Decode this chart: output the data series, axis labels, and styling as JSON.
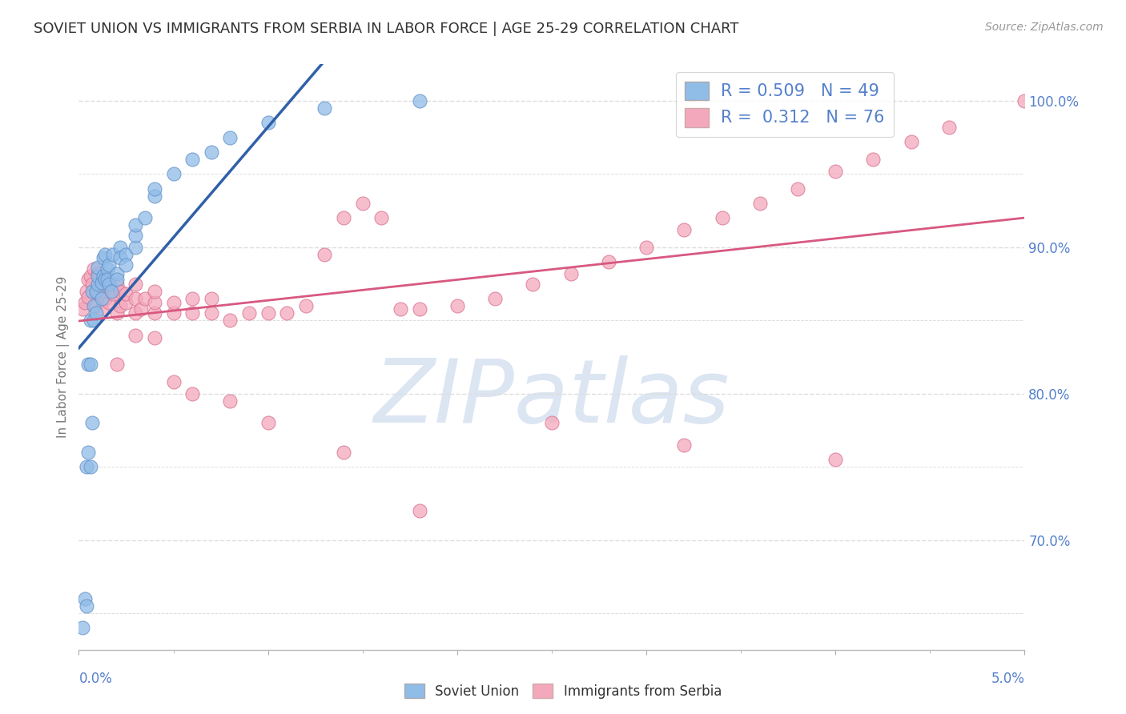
{
  "title": "SOVIET UNION VS IMMIGRANTS FROM SERBIA IN LABOR FORCE | AGE 25-29 CORRELATION CHART",
  "source": "Source: ZipAtlas.com",
  "ylabel": "In Labor Force | Age 25-29",
  "xlim": [
    0.0,
    0.05
  ],
  "ylim": [
    0.625,
    1.025
  ],
  "soviet_color": "#90bce8",
  "serbia_color": "#f4a8bc",
  "soviet_edge_color": "#6090c8",
  "serbia_edge_color": "#d87090",
  "soviet_line_color": "#3060a8",
  "serbia_line_color": "#d85880",
  "background_color": "#ffffff",
  "grid_color": "#dddddd",
  "tick_color": "#5580cc",
  "title_color": "#333333",
  "source_color": "#999999",
  "watermark_color": "#c0d0e8",
  "legend_r1": "R = 0.509   N = 49",
  "legend_r2": "R =  0.312   N = 76",
  "soviet_x": [
    0.0002,
    0.0003,
    0.0004,
    0.0004,
    0.0005,
    0.0005,
    0.0006,
    0.0006,
    0.0006,
    0.0007,
    0.0007,
    0.0008,
    0.0008,
    0.0009,
    0.0009,
    0.001,
    0.001,
    0.001,
    0.0012,
    0.0012,
    0.0013,
    0.0013,
    0.0014,
    0.0014,
    0.0015,
    0.0015,
    0.0016,
    0.0016,
    0.0017,
    0.0018,
    0.002,
    0.002,
    0.0022,
    0.0022,
    0.0025,
    0.0025,
    0.003,
    0.003,
    0.003,
    0.0035,
    0.004,
    0.004,
    0.005,
    0.006,
    0.007,
    0.008,
    0.01,
    0.013,
    0.018
  ],
  "soviet_y": [
    0.64,
    0.66,
    0.655,
    0.75,
    0.82,
    0.76,
    0.85,
    0.82,
    0.75,
    0.78,
    0.87,
    0.85,
    0.86,
    0.87,
    0.855,
    0.875,
    0.88,
    0.886,
    0.876,
    0.865,
    0.88,
    0.893,
    0.878,
    0.895,
    0.885,
    0.878,
    0.875,
    0.888,
    0.87,
    0.895,
    0.882,
    0.878,
    0.9,
    0.893,
    0.895,
    0.888,
    0.9,
    0.908,
    0.915,
    0.92,
    0.935,
    0.94,
    0.95,
    0.96,
    0.965,
    0.975,
    0.985,
    0.995,
    1.0
  ],
  "serbia_x": [
    0.0002,
    0.0003,
    0.0004,
    0.0005,
    0.0005,
    0.0006,
    0.0007,
    0.0008,
    0.0009,
    0.001,
    0.001,
    0.0012,
    0.0013,
    0.0014,
    0.0015,
    0.0016,
    0.0017,
    0.0018,
    0.002,
    0.002,
    0.0022,
    0.0022,
    0.0025,
    0.0025,
    0.003,
    0.003,
    0.003,
    0.0033,
    0.0035,
    0.004,
    0.004,
    0.004,
    0.005,
    0.005,
    0.006,
    0.006,
    0.007,
    0.007,
    0.008,
    0.009,
    0.01,
    0.011,
    0.012,
    0.013,
    0.014,
    0.015,
    0.016,
    0.017,
    0.018,
    0.02,
    0.022,
    0.024,
    0.026,
    0.028,
    0.03,
    0.032,
    0.034,
    0.036,
    0.038,
    0.04,
    0.042,
    0.044,
    0.046,
    0.002,
    0.003,
    0.004,
    0.005,
    0.006,
    0.008,
    0.01,
    0.014,
    0.018,
    0.025,
    0.032,
    0.04,
    0.05
  ],
  "serbia_y": [
    0.858,
    0.862,
    0.87,
    0.866,
    0.878,
    0.88,
    0.875,
    0.885,
    0.86,
    0.868,
    0.882,
    0.858,
    0.87,
    0.865,
    0.876,
    0.862,
    0.87,
    0.868,
    0.855,
    0.875,
    0.86,
    0.87,
    0.862,
    0.868,
    0.875,
    0.865,
    0.855,
    0.858,
    0.865,
    0.855,
    0.862,
    0.87,
    0.855,
    0.862,
    0.855,
    0.865,
    0.855,
    0.865,
    0.85,
    0.855,
    0.855,
    0.855,
    0.86,
    0.895,
    0.92,
    0.93,
    0.92,
    0.858,
    0.858,
    0.86,
    0.865,
    0.875,
    0.882,
    0.89,
    0.9,
    0.912,
    0.92,
    0.93,
    0.94,
    0.952,
    0.96,
    0.972,
    0.982,
    0.82,
    0.84,
    0.838,
    0.808,
    0.8,
    0.795,
    0.78,
    0.76,
    0.72,
    0.78,
    0.765,
    0.755,
    1.0
  ]
}
